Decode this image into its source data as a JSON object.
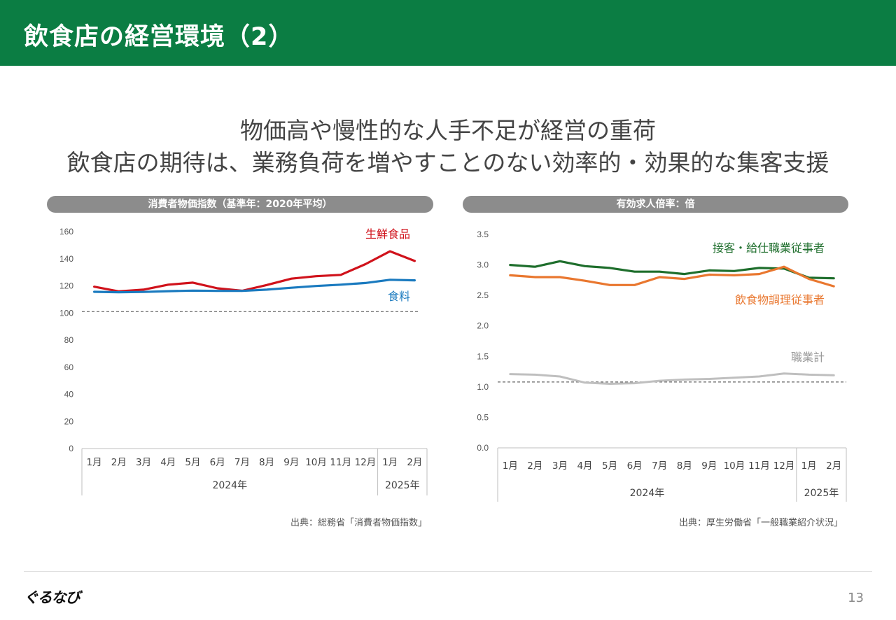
{
  "header": {
    "title": "飲食店の経営環境（2）"
  },
  "headline": {
    "line1": "物価高や慢性的な人手不足が経営の重荷",
    "line2": "飲食店の期待は、業務負荷を増やすことのない効率的・効果的な集客支援"
  },
  "chart_data": [
    {
      "type": "line",
      "title": "消費者物価指数（基準年：2020年平均）",
      "categories": [
        "1月",
        "2月",
        "3月",
        "4月",
        "5月",
        "6月",
        "7月",
        "8月",
        "9月",
        "10月",
        "11月",
        "12月",
        "1月",
        "2月"
      ],
      "year_groups": [
        {
          "label": "2024年",
          "count": 12
        },
        {
          "label": "2025年",
          "count": 2
        }
      ],
      "ylim": [
        0,
        160
      ],
      "yticks": [
        "0",
        "20",
        "40",
        "60",
        "80",
        "100",
        "120",
        "140",
        "160"
      ],
      "reference_line": 101,
      "series": [
        {
          "name": "生鮮食品",
          "color": "#d0121b",
          "values": [
            119.4,
            115.9,
            117.2,
            120.9,
            122.4,
            118.2,
            116.4,
            120.6,
            125.3,
            127.1,
            128.1,
            136.0,
            145.5,
            138.4
          ]
        },
        {
          "name": "食料",
          "color": "#1a7abf",
          "values": [
            115.6,
            115.3,
            115.5,
            116.1,
            116.5,
            116.3,
            116.3,
            117.2,
            118.6,
            119.9,
            120.9,
            122.1,
            124.5,
            124.1
          ]
        }
      ],
      "source": "出典：総務省「消費者物価指数」"
    },
    {
      "type": "line",
      "title": "有効求人倍率：倍",
      "categories": [
        "1月",
        "2月",
        "3月",
        "4月",
        "5月",
        "6月",
        "7月",
        "8月",
        "9月",
        "10月",
        "11月",
        "12月",
        "1月",
        "2月"
      ],
      "year_groups": [
        {
          "label": "2024年",
          "count": 12
        },
        {
          "label": "2025年",
          "count": 2
        }
      ],
      "ylim": [
        0,
        3.5
      ],
      "yticks": [
        "0.0",
        "0.5",
        "1.0",
        "1.5",
        "2.0",
        "2.5",
        "3.0",
        "3.5"
      ],
      "reference_line": 1.08,
      "series": [
        {
          "name": "接客・給仕職業従事者",
          "color": "#1e6e2c",
          "values": [
            3.0,
            2.97,
            3.06,
            2.98,
            2.95,
            2.89,
            2.89,
            2.85,
            2.91,
            2.9,
            2.95,
            2.94,
            2.79,
            2.78
          ]
        },
        {
          "name": "飲食物調理従事者",
          "color": "#e9772f",
          "values": [
            2.83,
            2.8,
            2.8,
            2.74,
            2.67,
            2.67,
            2.8,
            2.77,
            2.84,
            2.83,
            2.85,
            2.97,
            2.77,
            2.65
          ]
        },
        {
          "name": "職業計",
          "color": "#bfbfbf",
          "values": [
            1.21,
            1.2,
            1.17,
            1.07,
            1.05,
            1.06,
            1.1,
            1.12,
            1.13,
            1.15,
            1.17,
            1.22,
            1.2,
            1.19
          ]
        }
      ],
      "source": "出典：厚生労働省「一般職業紹介状況」"
    }
  ],
  "footer": {
    "logo": "ぐるなび",
    "page_number": "13"
  }
}
